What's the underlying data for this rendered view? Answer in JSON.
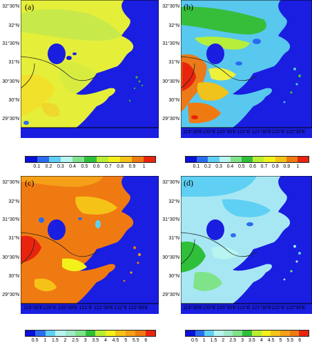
{
  "panels": [
    {
      "id": "a",
      "label": "(a)",
      "variant": "a"
    },
    {
      "id": "b",
      "label": "(b)",
      "variant": "b"
    },
    {
      "id": "c",
      "label": "(c)",
      "variant": "c"
    },
    {
      "id": "d",
      "label": "(d)",
      "variant": "d"
    }
  ],
  "y_ticks": [
    "32°30'N",
    "32°N",
    "31°30'N",
    "31°N",
    "30°30'N",
    "30°N",
    "29°30'N"
  ],
  "x_ticks": [
    "119°30'E",
    "120°E",
    "120°30'E",
    "121°E",
    "121°30'E",
    "122°E",
    "122°30'E"
  ],
  "colorbar_top": {
    "labels": [
      "0.1",
      "0.2",
      "0.3",
      "0.4",
      "0.5",
      "0.6",
      "0.7",
      "0.8",
      "0.9",
      "1"
    ],
    "colors": [
      "#0a10d8",
      "#2a6cf0",
      "#5fd0f4",
      "#b8f4f0",
      "#7fe38a",
      "#2fbf3a",
      "#b9ef33",
      "#f2f21a",
      "#f5c318",
      "#f07a12",
      "#e8240e"
    ]
  },
  "colorbar_bottom": {
    "labels": [
      "0.5",
      "1",
      "1.5",
      "2",
      "2.5",
      "3",
      "3.5",
      "4",
      "4.5",
      "5",
      "5.5",
      "6"
    ],
    "colors": [
      "#0a10d8",
      "#2a6cf0",
      "#5fd0f4",
      "#b8f4f0",
      "#a0eac8",
      "#7fe38a",
      "#2fbf3a",
      "#b9ef33",
      "#f2f21a",
      "#f5c318",
      "#f5a018",
      "#f07a12",
      "#e8240e"
    ]
  }
}
